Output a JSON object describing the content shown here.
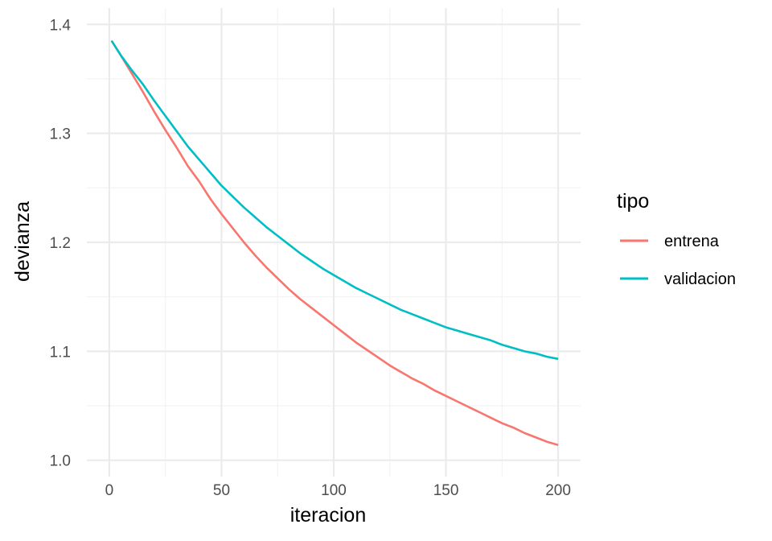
{
  "chart_data": {
    "type": "line",
    "xlabel": "iteracion",
    "ylabel": "devianza",
    "xlim": [
      1,
      200
    ],
    "ylim": [
      1.0,
      1.4
    ],
    "x_ticks": [
      0,
      50,
      100,
      150,
      200
    ],
    "x_tick_labels": [
      "0",
      "50",
      "100",
      "150",
      "200"
    ],
    "y_ticks": [
      1.0,
      1.1,
      1.2,
      1.3,
      1.4
    ],
    "y_tick_labels": [
      "1.0",
      "1.1",
      "1.2",
      "1.3",
      "1.4"
    ],
    "grid": true,
    "legend": {
      "title": "tipo",
      "position": "right",
      "entries": [
        "entrena",
        "validacion"
      ]
    },
    "series": [
      {
        "name": "entrena",
        "color": "#F8766D",
        "x": [
          1,
          5,
          10,
          15,
          20,
          25,
          30,
          35,
          40,
          45,
          50,
          55,
          60,
          65,
          70,
          75,
          80,
          85,
          90,
          95,
          100,
          105,
          110,
          115,
          120,
          125,
          130,
          135,
          140,
          145,
          150,
          155,
          160,
          165,
          170,
          175,
          180,
          185,
          190,
          195,
          200
        ],
        "y": [
          1.385,
          1.372,
          1.355,
          1.338,
          1.32,
          1.303,
          1.287,
          1.27,
          1.256,
          1.24,
          1.226,
          1.213,
          1.2,
          1.188,
          1.177,
          1.167,
          1.157,
          1.148,
          1.14,
          1.132,
          1.124,
          1.116,
          1.108,
          1.101,
          1.094,
          1.087,
          1.081,
          1.075,
          1.07,
          1.064,
          1.059,
          1.054,
          1.049,
          1.044,
          1.039,
          1.034,
          1.03,
          1.025,
          1.021,
          1.017,
          1.014
        ]
      },
      {
        "name": "validacion",
        "color": "#00BFC4",
        "x": [
          1,
          5,
          10,
          15,
          20,
          25,
          30,
          35,
          40,
          45,
          50,
          55,
          60,
          65,
          70,
          75,
          80,
          85,
          90,
          95,
          100,
          105,
          110,
          115,
          120,
          125,
          130,
          135,
          140,
          145,
          150,
          155,
          160,
          165,
          170,
          175,
          180,
          185,
          190,
          195,
          200
        ],
        "y": [
          1.385,
          1.372,
          1.358,
          1.345,
          1.33,
          1.316,
          1.302,
          1.288,
          1.276,
          1.264,
          1.252,
          1.242,
          1.232,
          1.223,
          1.214,
          1.206,
          1.198,
          1.19,
          1.183,
          1.176,
          1.17,
          1.164,
          1.158,
          1.153,
          1.148,
          1.143,
          1.138,
          1.134,
          1.13,
          1.126,
          1.122,
          1.119,
          1.116,
          1.113,
          1.11,
          1.106,
          1.103,
          1.1,
          1.098,
          1.095,
          1.093
        ]
      }
    ]
  }
}
